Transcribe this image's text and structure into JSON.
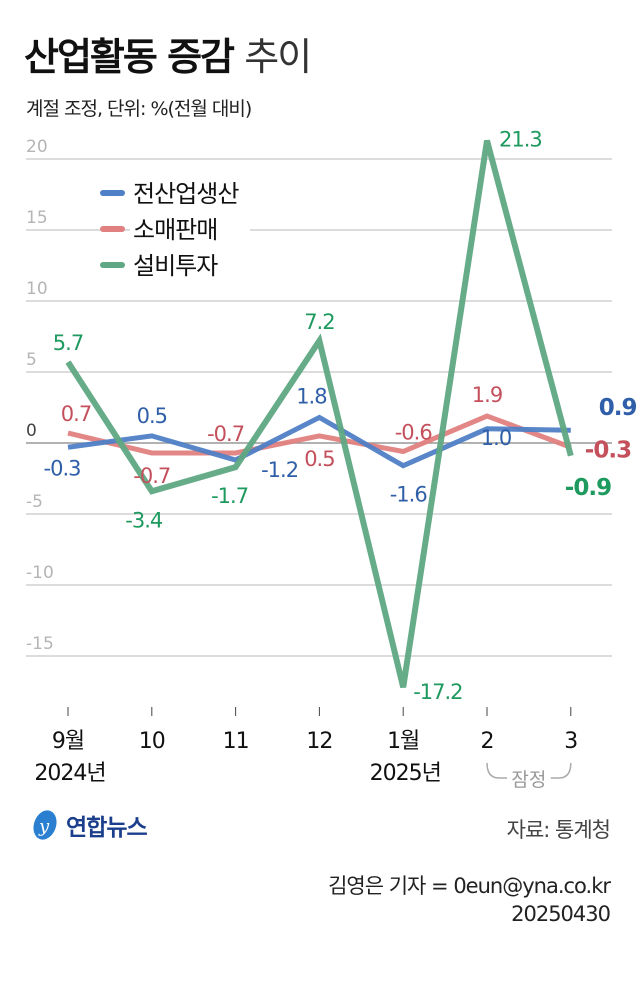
{
  "title_bold": "산업활동 증감",
  "title_light": "추이",
  "subtitle": "계절 조정, 단위: %(전월 대비)",
  "source": "자료: 통계청",
  "credit_line1": "김영은 기자 = 0eun@yna.co.kr",
  "credit_line2": "20250430",
  "logo_text": "연합뉴스",
  "chart_data": {
    "type": "line",
    "categories": [
      "9월",
      "10",
      "11",
      "12",
      "1월",
      "2",
      "3"
    ],
    "year_labels": [
      {
        "index": 0,
        "label": "2024년"
      },
      {
        "index": 4,
        "label": "2025년"
      }
    ],
    "annotation": {
      "label": "잠정",
      "indices": [
        5,
        6
      ]
    },
    "yticks": [
      20,
      15,
      10,
      5,
      0,
      -5,
      -10,
      -15
    ],
    "ylim": [
      -18,
      22
    ],
    "grid": true,
    "legend": "top-left",
    "series": [
      {
        "name": "전산업생산",
        "color": "#4f7fc6",
        "label_color": "#2f5fa8",
        "values": [
          -0.3,
          0.5,
          -1.2,
          1.8,
          -1.6,
          1.0,
          0.9
        ]
      },
      {
        "name": "소매판매",
        "color": "#e08080",
        "label_color": "#c4505c",
        "values": [
          0.7,
          -0.7,
          -0.7,
          0.5,
          -0.6,
          1.9,
          -0.3
        ]
      },
      {
        "name": "설비투자",
        "color": "#5fa883",
        "label_color": "#1e9a5f",
        "values": [
          5.7,
          -3.4,
          -1.7,
          7.2,
          -17.2,
          21.3,
          -0.9
        ]
      }
    ]
  }
}
